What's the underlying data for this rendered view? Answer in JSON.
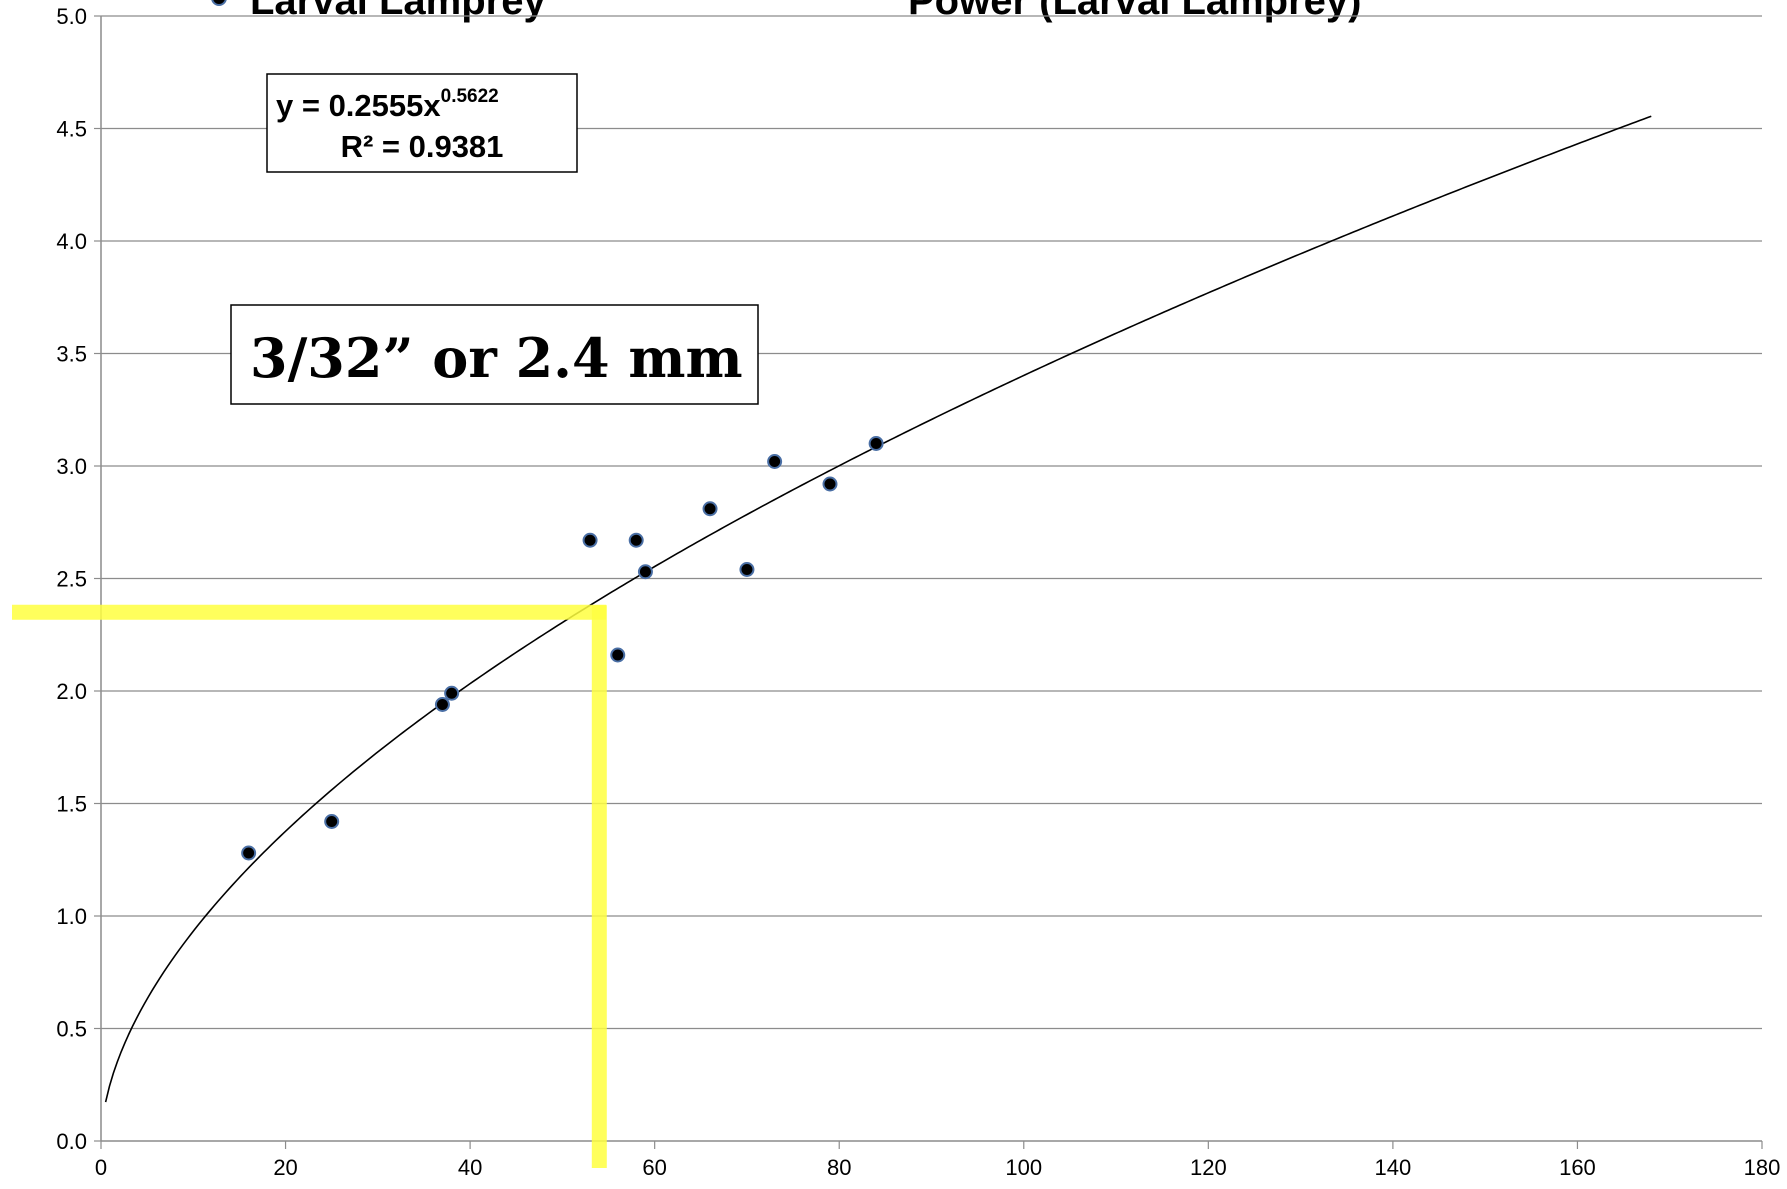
{
  "chart_data": {
    "type": "scatter",
    "legend": {
      "series_label": "Larval Lamprey",
      "trendline_label": "Power (Larval Lamprey)",
      "placement": "top"
    },
    "x_ticks": [
      "0",
      "20",
      "40",
      "60",
      "80",
      "100",
      "120",
      "140",
      "160",
      "180"
    ],
    "y_ticks": [
      "0.0",
      "0.5",
      "1.0",
      "1.5",
      "2.0",
      "2.5",
      "3.0",
      "3.5",
      "4.0",
      "4.5",
      "5.0"
    ],
    "xlim": [
      0,
      180
    ],
    "ylim": [
      0,
      5.0
    ],
    "grid": "horizontal",
    "series": [
      {
        "name": "Larval Lamprey",
        "color": "#000000",
        "marker_edge_color": "#4a6fa5",
        "points": [
          {
            "x": 16,
            "y": 1.28
          },
          {
            "x": 25,
            "y": 1.42
          },
          {
            "x": 37,
            "y": 1.94
          },
          {
            "x": 38,
            "y": 1.99
          },
          {
            "x": 53,
            "y": 2.67
          },
          {
            "x": 56,
            "y": 2.16
          },
          {
            "x": 58,
            "y": 2.67
          },
          {
            "x": 59,
            "y": 2.53
          },
          {
            "x": 66,
            "y": 2.81
          },
          {
            "x": 70,
            "y": 2.54
          },
          {
            "x": 73,
            "y": 3.02
          },
          {
            "x": 79,
            "y": 2.92
          },
          {
            "x": 84,
            "y": 3.1
          }
        ]
      }
    ],
    "trendline": {
      "type": "power",
      "coefficient": 0.2555,
      "exponent": 0.5622,
      "x_range": [
        0.5,
        168
      ],
      "color": "#000000"
    },
    "equation": {
      "line1_base": "y = 0.2555x",
      "line1_exponent": "0.5622",
      "line2": "R² = 0.9381"
    },
    "annotation": {
      "text": "3/32” or 2.4 mm",
      "highlight_color": "#ffff40",
      "highlight_x": 54,
      "highlight_y": 2.35
    }
  }
}
